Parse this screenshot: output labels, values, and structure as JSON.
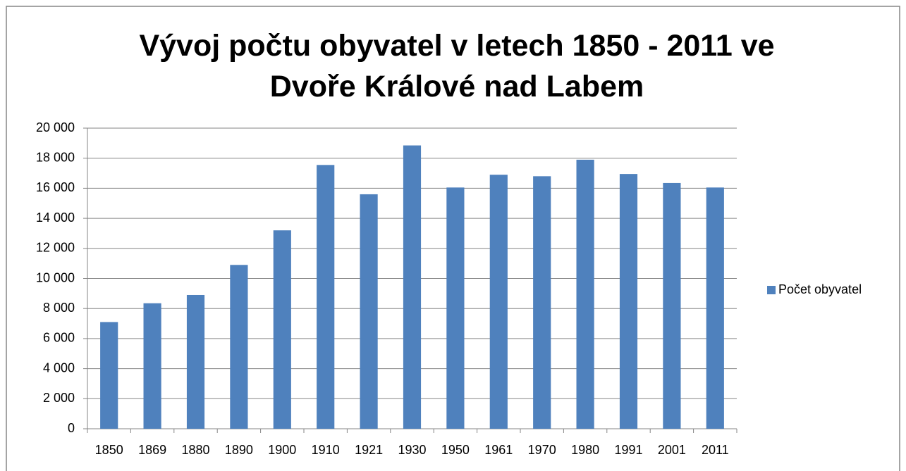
{
  "chart_data": {
    "type": "bar",
    "title": "Vývoj počtu obyvatel v letech 1850 - 2011 ve Dvoře Králové nad Labem",
    "categories": [
      "1850",
      "1869",
      "1880",
      "1890",
      "1900",
      "1910",
      "1921",
      "1930",
      "1950",
      "1961",
      "1970",
      "1980",
      "1991",
      "2001",
      "2011"
    ],
    "series": [
      {
        "name": "Počet obyvatel",
        "color": "#4f81bd",
        "values": [
          7100,
          8350,
          8900,
          10900,
          13200,
          17550,
          15600,
          18850,
          16050,
          16900,
          16800,
          17900,
          16950,
          16350,
          16050
        ]
      }
    ],
    "ylim": [
      0,
      20000
    ],
    "yticks": [
      0,
      {
        "value": 2000,
        "label": "2 000"
      },
      {
        "value": 4000,
        "label": "4 000"
      },
      {
        "value": 6000,
        "label": "6 000"
      },
      {
        "value": 8000,
        "label": "8 000"
      },
      {
        "value": 10000,
        "label": "10 000"
      },
      {
        "value": 12000,
        "label": "12 000"
      },
      {
        "value": 14000,
        "label": "14 000"
      },
      {
        "value": 16000,
        "label": "16 000"
      },
      {
        "value": 18000,
        "label": "18 000"
      },
      {
        "value": 20000,
        "label": "20 000"
      }
    ],
    "grid": true,
    "legend": "right"
  }
}
